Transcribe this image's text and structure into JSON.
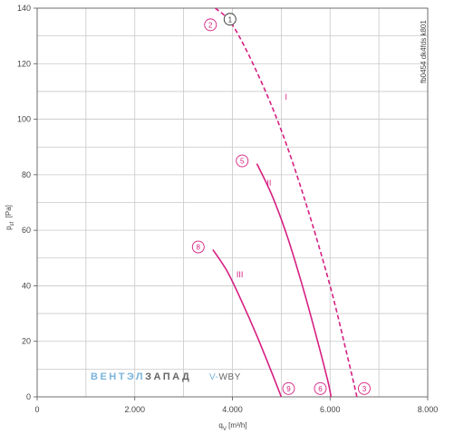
{
  "chart_data": {
    "type": "line",
    "xlabel": {
      "main": "q",
      "sub": "V",
      "unit": "[m³/h]"
    },
    "ylabel": {
      "main": "p",
      "sub": "sf",
      "unit": "[Pa]"
    },
    "xlim": [
      0,
      8000
    ],
    "ylim": [
      0,
      140
    ],
    "x_ticks": [
      0,
      2000,
      4000,
      6000,
      8000
    ],
    "x_tick_labels": [
      "0",
      "2.000",
      "4.000",
      "6.000",
      "8.000"
    ],
    "y_ticks": [
      0,
      20,
      40,
      60,
      80,
      100,
      120,
      140
    ],
    "y_tick_labels": [
      "0",
      "20",
      "40",
      "60",
      "80",
      "100",
      "120",
      "140"
    ],
    "grid": true,
    "series": [
      {
        "name": "I",
        "style": "dashed",
        "color": "#d61f82",
        "x": [
          3650,
          4000,
          4500,
          5000,
          5500,
          6000,
          6350,
          6550
        ],
        "y": [
          140,
          134,
          117,
          96,
          70,
          40,
          15,
          0
        ]
      },
      {
        "name": "II",
        "style": "solid",
        "color": "#d61f82",
        "x": [
          4500,
          4800,
          5100,
          5400,
          5700,
          5950,
          6020
        ],
        "y": [
          84,
          73,
          59,
          42,
          23,
          6,
          0
        ]
      },
      {
        "name": "III",
        "style": "solid",
        "color": "#d61f82",
        "x": [
          3600,
          3900,
          4200,
          4500,
          4800,
          5000
        ],
        "y": [
          53,
          45,
          34,
          22,
          9,
          0
        ]
      }
    ],
    "curve_labels": [
      {
        "text": "I",
        "x": 5100,
        "y": 107
      },
      {
        "text": "II",
        "x": 4750,
        "y": 76
      },
      {
        "text": "III",
        "x": 4150,
        "y": 43
      }
    ],
    "markers": [
      {
        "text": "1",
        "x": 3950,
        "y": 136,
        "color": "#333333"
      },
      {
        "text": "2",
        "x": 3550,
        "y": 134,
        "color": "#d61f82"
      },
      {
        "text": "5",
        "x": 4200,
        "y": 85,
        "color": "#d61f82"
      },
      {
        "text": "8",
        "x": 3300,
        "y": 54,
        "color": "#d61f82"
      },
      {
        "text": "9",
        "x": 5150,
        "y": 3,
        "color": "#d61f82"
      },
      {
        "text": "6",
        "x": 5800,
        "y": 3,
        "color": "#d61f82"
      },
      {
        "text": "3",
        "x": 6700,
        "y": 3,
        "color": "#d61f82"
      }
    ]
  },
  "side_note": "fb0454 dk4fds k801",
  "watermark": {
    "brand_part1": "ВЕНТЭЛ",
    "brand_part2": "ЗАПАД",
    "brand_part3": "V-",
    "brand_part4": "WBY",
    "brand_color": "#7ab4dc",
    "brand_dark": "#666666"
  },
  "colors": {
    "grid": "#c8c8c8",
    "axis": "#555555",
    "curve": "#d61f82"
  }
}
